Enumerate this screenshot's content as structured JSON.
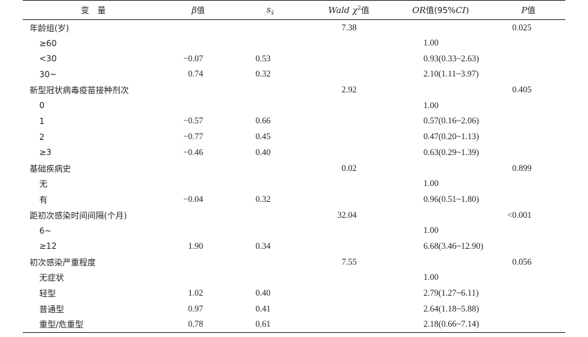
{
  "header": {
    "variable": "变　量",
    "beta_sym": "β",
    "beta_suffix": "值",
    "se_sym": "s",
    "se_sub": "x̄",
    "wald_sym": "Wald χ",
    "wald_sup": "2",
    "wald_suffix": "值",
    "or_sym": "OR",
    "or_suffix": "值(95%",
    "or_ci": "CI",
    "or_close": ")",
    "p_sym": "P",
    "p_suffix": "值"
  },
  "rows": [
    {
      "variable": "年龄组(岁)",
      "sub": false,
      "beta": "",
      "se": "",
      "wald": "7.38",
      "or": "",
      "p": "0.025"
    },
    {
      "variable": "≥60",
      "sub": true,
      "beta": "",
      "se": "",
      "wald": "",
      "or": "1.00",
      "p": ""
    },
    {
      "variable": "<30",
      "sub": true,
      "beta": "−0.07",
      "se": "0.53",
      "wald": "",
      "or": "0.93(0.33~2.63)",
      "p": ""
    },
    {
      "variable": "30~",
      "sub": true,
      "beta": "0.74",
      "se": "0.32",
      "wald": "",
      "or": "2.10(1.11~3.97)",
      "p": ""
    },
    {
      "variable": "新型冠状病毒疫苗接种剂次",
      "sub": false,
      "beta": "",
      "se": "",
      "wald": "2.92",
      "or": "",
      "p": "0.405"
    },
    {
      "variable": "0",
      "sub": true,
      "beta": "",
      "se": "",
      "wald": "",
      "or": "1.00",
      "p": ""
    },
    {
      "variable": "1",
      "sub": true,
      "beta": "−0.57",
      "se": "0.66",
      "wald": "",
      "or": "0.57(0.16~2.06)",
      "p": ""
    },
    {
      "variable": "2",
      "sub": true,
      "beta": "−0.77",
      "se": "0.45",
      "wald": "",
      "or": "0.47(0.20~1.13)",
      "p": ""
    },
    {
      "variable": "≥3",
      "sub": true,
      "beta": "−0.46",
      "se": "0.40",
      "wald": "",
      "or": "0.63(0.29~1.39)",
      "p": ""
    },
    {
      "variable": "基础疾病史",
      "sub": false,
      "beta": "",
      "se": "",
      "wald": "0.02",
      "or": "",
      "p": "0.899"
    },
    {
      "variable": "无",
      "sub": true,
      "beta": "",
      "se": "",
      "wald": "",
      "or": "1.00",
      "p": ""
    },
    {
      "variable": "有",
      "sub": true,
      "beta": "−0.04",
      "se": "0.32",
      "wald": "",
      "or": "0.96(0.51~1.80)",
      "p": ""
    },
    {
      "variable": "距初次感染时间间隔(个月)",
      "sub": false,
      "beta": "",
      "se": "",
      "wald": "32.04",
      "or": "",
      "p": "<0.001"
    },
    {
      "variable": "6~",
      "sub": true,
      "beta": "",
      "se": "",
      "wald": "",
      "or": "1.00",
      "p": ""
    },
    {
      "variable": "≥12",
      "sub": true,
      "beta": "1.90",
      "se": "0.34",
      "wald": "",
      "or": "6.68(3.46~12.90)",
      "p": ""
    },
    {
      "variable": "初次感染严重程度",
      "sub": false,
      "beta": "",
      "se": "",
      "wald": "7.55",
      "or": "",
      "p": "0.056"
    },
    {
      "variable": "无症状",
      "sub": true,
      "beta": "",
      "se": "",
      "wald": "",
      "or": "1.00",
      "p": ""
    },
    {
      "variable": "轻型",
      "sub": true,
      "beta": "1.02",
      "se": "0.40",
      "wald": "",
      "or": "2.79(1.27~6.11)",
      "p": ""
    },
    {
      "variable": "普通型",
      "sub": true,
      "beta": "0.97",
      "se": "0.41",
      "wald": "",
      "or": "2.64(1.18~5.88)",
      "p": ""
    },
    {
      "variable": "重型/危重型",
      "sub": true,
      "beta": "0.78",
      "se": "0.61",
      "wald": "",
      "or": "2.18(0.66~7.14)",
      "p": ""
    }
  ]
}
